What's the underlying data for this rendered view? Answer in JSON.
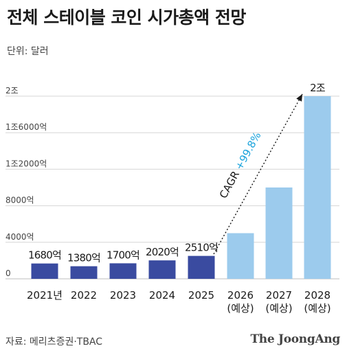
{
  "title": "전체 스테이블 코인 시가총액 전망",
  "unit_label": "단위: 달러",
  "source": "자료: 메리츠증권·TBAC",
  "logo": "The JoongAng",
  "colors": {
    "actual": "#3a4ba0",
    "forecast": "#9ccbed",
    "cagr_text": "#1aa3dc",
    "grid": "#d6d6d6"
  },
  "chart_data": {
    "type": "bar",
    "title": "전체 스테이블 코인 시가총액 전망",
    "ylabel": "",
    "ylim": [
      0,
      20000
    ],
    "y_ticks": [
      {
        "value": 0,
        "label": "0"
      },
      {
        "value": 4000,
        "label": "4000억"
      },
      {
        "value": 8000,
        "label": "8000억"
      },
      {
        "value": 12000,
        "label": "1조2000억"
      },
      {
        "value": 16000,
        "label": "1조6000억"
      },
      {
        "value": 20000,
        "label": "2조"
      }
    ],
    "grid": true,
    "categories": [
      [
        "2021년"
      ],
      [
        "2022"
      ],
      [
        "2023"
      ],
      [
        "2024"
      ],
      [
        "2025"
      ],
      [
        "2026",
        "(예상)"
      ],
      [
        "2027",
        "(예상)"
      ],
      [
        "2028",
        "(예상)"
      ]
    ],
    "values": [
      1680,
      1380,
      1700,
      2020,
      2510,
      5000,
      10000,
      20000
    ],
    "forecast": [
      false,
      false,
      false,
      false,
      false,
      true,
      true,
      true
    ],
    "data_labels": [
      "1680억",
      "1380억",
      "1700억",
      "2020억",
      "2510억",
      "",
      "",
      "2조"
    ],
    "annotation": {
      "prefix": "CAGR ",
      "highlight": "+99.8%"
    }
  }
}
